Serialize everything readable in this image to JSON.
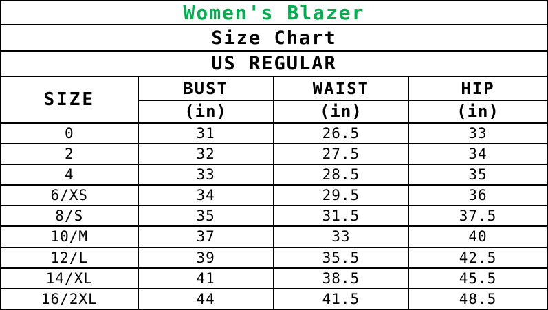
{
  "title": "Women's Blazer",
  "title_color": "#00B050",
  "subtitle": "Size Chart",
  "region_label": "US REGULAR",
  "table": {
    "size_header": "SIZE",
    "columns": [
      {
        "label": "BUST",
        "unit": "(in)"
      },
      {
        "label": "WAIST",
        "unit": "(in)"
      },
      {
        "label": "HIP",
        "unit": "(in)"
      }
    ],
    "rows": [
      {
        "size": "0",
        "bust": "31",
        "waist": "26.5",
        "hip": "33"
      },
      {
        "size": "2",
        "bust": "32",
        "waist": "27.5",
        "hip": "34"
      },
      {
        "size": "4",
        "bust": "33",
        "waist": "28.5",
        "hip": "35"
      },
      {
        "size": "6/XS",
        "bust": "34",
        "waist": "29.5",
        "hip": "36"
      },
      {
        "size": "8/S",
        "bust": "35",
        "waist": "31.5",
        "hip": "37.5"
      },
      {
        "size": "10/M",
        "bust": "37",
        "waist": "33",
        "hip": "40"
      },
      {
        "size": "12/L",
        "bust": "39",
        "waist": "35.5",
        "hip": "42.5"
      },
      {
        "size": "14/XL",
        "bust": "41",
        "waist": "38.5",
        "hip": "45.5"
      },
      {
        "size": "16/2XL",
        "bust": "44",
        "waist": "41.5",
        "hip": "48.5"
      }
    ]
  },
  "chart_data": {
    "type": "table",
    "title": "Women's Blazer",
    "subtitle": "Size Chart",
    "region": "US REGULAR",
    "columns": [
      "SIZE",
      "BUST (in)",
      "WAIST (in)",
      "HIP (in)"
    ],
    "categories": [
      "0",
      "2",
      "4",
      "6/XS",
      "8/S",
      "10/M",
      "12/L",
      "14/XL",
      "16/2XL"
    ],
    "series": [
      {
        "name": "BUST (in)",
        "values": [
          31,
          32,
          33,
          34,
          35,
          37,
          39,
          41,
          44
        ]
      },
      {
        "name": "WAIST (in)",
        "values": [
          26.5,
          27.5,
          28.5,
          29.5,
          31.5,
          33,
          35.5,
          38.5,
          41.5
        ]
      },
      {
        "name": "HIP (in)",
        "values": [
          33,
          34,
          35,
          36,
          37.5,
          40,
          42.5,
          45.5,
          48.5
        ]
      }
    ]
  }
}
